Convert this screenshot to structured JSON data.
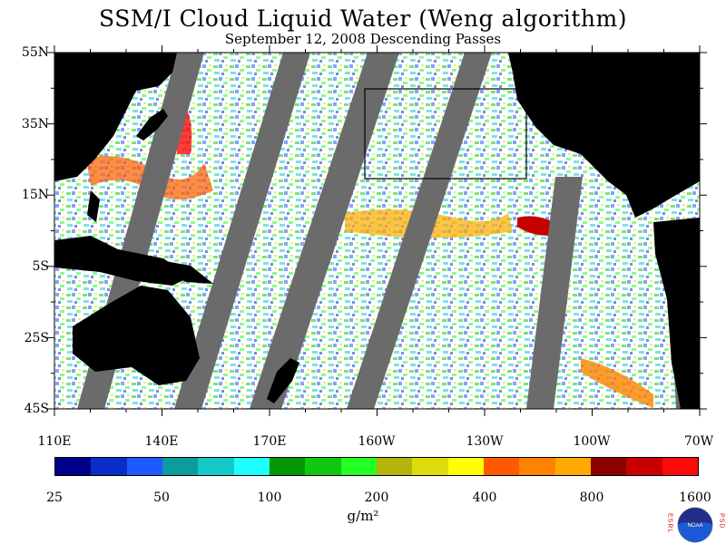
{
  "title": "SSM/I Cloud Liquid Water (Weng algorithm)",
  "subtitle": "September 12, 2008  Descending Passes",
  "map": {
    "lat_labels": [
      "55N",
      "35N",
      "15N",
      "5S",
      "25S",
      "45S"
    ],
    "lon_labels": [
      "110E",
      "140E",
      "170E",
      "160W",
      "130W",
      "100W",
      "70W"
    ],
    "colors": {
      "land": "#000000",
      "no_data_swath": "#6b6b6b",
      "clear_sky": "#ffffff"
    }
  },
  "colorbar": {
    "colors": [
      "#00008b",
      "#0a2dc8",
      "#1e5aff",
      "#0c9c9c",
      "#16c8c8",
      "#20ffff",
      "#049604",
      "#10c810",
      "#24ff24",
      "#b4b40c",
      "#dcdc0c",
      "#ffff00",
      "#ff5a00",
      "#ff8200",
      "#ffaa00",
      "#8c0000",
      "#c80000",
      "#ff0a0a"
    ],
    "tick_labels": [
      "25",
      "50",
      "100",
      "200",
      "400",
      "800",
      "1600"
    ],
    "units": "g/m²"
  },
  "logo": {
    "left_text": "ESRL",
    "right_text": "PSD",
    "center_text": "NOAA"
  }
}
